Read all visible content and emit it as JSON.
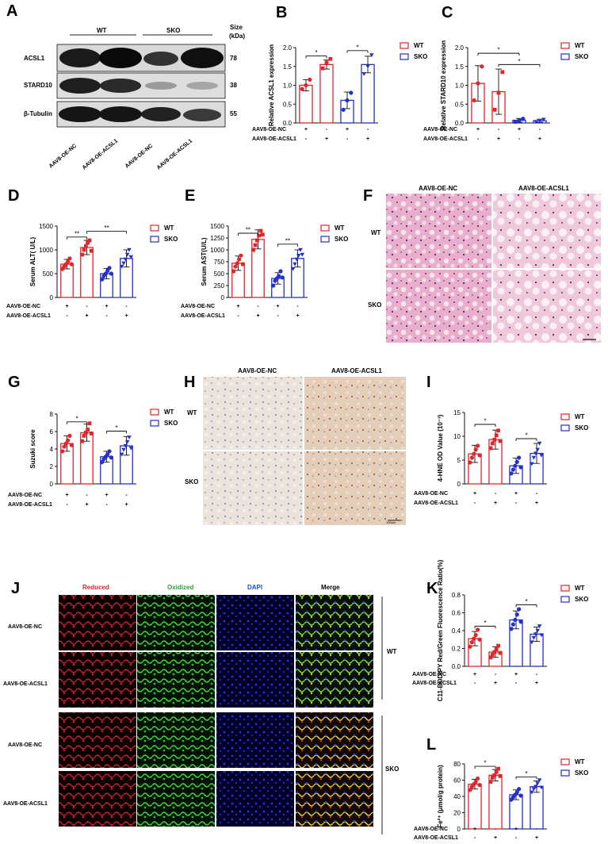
{
  "panel_letters": [
    "A",
    "B",
    "C",
    "D",
    "E",
    "F",
    "G",
    "H",
    "I",
    "J",
    "K",
    "L"
  ],
  "legend": {
    "wt": "WT",
    "sko": "SKO"
  },
  "colors": {
    "wt": "#e0262b",
    "sko": "#2531c8",
    "wt_fill": "#f08c8e",
    "sko_fill": "#8a91e6"
  },
  "plus": "+",
  "minus": "-",
  "sig": {
    "one": "*",
    "two": "**"
  },
  "row_labels": [
    "AAV8-OE-NC",
    "AAV8-OE-ACSL1"
  ],
  "row_signs": [
    [
      "+",
      "-",
      "+",
      "-"
    ],
    [
      "-",
      "+",
      "-",
      "+"
    ]
  ],
  "blot": {
    "wt_label": "WT",
    "sko_label": "SKO",
    "size_label": "Size",
    "kda_label": "(kDa)",
    "rows": [
      {
        "protein": "ACSL1",
        "kda": "78"
      },
      {
        "protein": "STARD10",
        "kda": "38"
      },
      {
        "protein": "β-Tubulin",
        "kda": "55"
      }
    ],
    "lanes": [
      "AAV8-OE-NC",
      "AAV8-OE-ACSL1",
      "AAV8-OE-NC",
      "AAV8-OE-ACSL1"
    ]
  },
  "histo": {
    "col1": "AAV8-OE-NC",
    "col2": "AAV8-OE-ACSL1",
    "row_wt": "WT",
    "row_sko": "SKO",
    "scale_ihc": "100μm"
  },
  "fluor": {
    "headers": [
      "Reduced",
      "Oxidized",
      "DAPI",
      "Merge"
    ],
    "header_colors": [
      "#e0262b",
      "#2ca33a",
      "#1a4fd6",
      "#111111"
    ],
    "rows": [
      "AAV8-OE-NC",
      "AAV8-OE-ACSL1",
      "AAV8-OE-NC",
      "AAV8-OE-ACSL1"
    ],
    "group_wt": "WT",
    "group_sko": "SKO"
  },
  "chart_data": [
    {
      "id": "B",
      "type": "bar",
      "ylabel": "Relative  ACSL1 expression",
      "ylim": [
        0,
        2.0
      ],
      "yticks": [
        "0.0",
        "0.5",
        "1.0",
        "1.5",
        "2.0"
      ],
      "values": [
        1.0,
        1.55,
        0.6,
        1.55
      ],
      "err": [
        0.15,
        0.12,
        0.22,
        0.22
      ],
      "points": [
        [
          0.9,
          1.0,
          1.15
        ],
        [
          1.45,
          1.6,
          1.7
        ],
        [
          0.35,
          0.6,
          0.8
        ],
        [
          1.3,
          1.5,
          1.8
        ]
      ],
      "sig": [
        {
          "from": 0,
          "to": 1,
          "y": 1.78,
          "label": "*"
        },
        {
          "from": 2,
          "to": 3,
          "y": 1.92,
          "label": "*"
        }
      ]
    },
    {
      "id": "C",
      "type": "bar",
      "ylabel": "Relative STARD10 expression",
      "ylim": [
        0,
        2.0
      ],
      "yticks": [
        "0.0",
        "0.5",
        "1.0",
        "1.5",
        "2.0"
      ],
      "values": [
        1.05,
        0.83,
        0.07,
        0.06
      ],
      "err": [
        0.47,
        0.6,
        0.05,
        0.04
      ],
      "points": [
        [
          0.6,
          1.05,
          1.5
        ],
        [
          0.35,
          0.8,
          1.35
        ],
        [
          0.03,
          0.07,
          0.11
        ],
        [
          0.03,
          0.06,
          0.09
        ]
      ],
      "sig": [
        {
          "from": 0,
          "to": 2,
          "y": 1.85,
          "label": "*"
        },
        {
          "from": 1,
          "to": 3,
          "y": 1.55,
          "label": "*"
        }
      ]
    },
    {
      "id": "D",
      "type": "bar",
      "ylabel": "Serum ALT( U/L)",
      "ylim": [
        0,
        1500
      ],
      "yticks": [
        "0",
        "500",
        "1000",
        "1500"
      ],
      "values": [
        700,
        1050,
        500,
        820
      ],
      "err": [
        100,
        150,
        110,
        180
      ],
      "points": [
        [
          600,
          650,
          700,
          750,
          820,
          700
        ],
        [
          900,
          1000,
          1080,
          1150,
          1200,
          980
        ],
        [
          380,
          450,
          500,
          560,
          620,
          500
        ],
        [
          650,
          720,
          800,
          900,
          1000,
          850
        ]
      ],
      "sig": [
        {
          "from": 0,
          "to": 1,
          "y": 1270,
          "label": "**"
        },
        {
          "from": 1,
          "to": 3,
          "y": 1390,
          "label": "**"
        }
      ]
    },
    {
      "id": "E",
      "type": "bar",
      "ylabel": "Serum AST(U/L)",
      "ylim": [
        0,
        1500
      ],
      "yticks": [
        "0",
        "250",
        "500",
        "750",
        "1000",
        "1250",
        "1500"
      ],
      "values": [
        720,
        1220,
        400,
        820
      ],
      "err": [
        150,
        200,
        120,
        180
      ],
      "points": [
        [
          550,
          650,
          720,
          800,
          880,
          700
        ],
        [
          1000,
          1100,
          1200,
          1300,
          1400,
          1320
        ],
        [
          250,
          350,
          400,
          450,
          550,
          420
        ],
        [
          600,
          700,
          800,
          880,
          1000,
          900
        ]
      ],
      "sig": [
        {
          "from": 0,
          "to": 1,
          "y": 1350,
          "label": "**"
        },
        {
          "from": 2,
          "to": 3,
          "y": 1120,
          "label": "**"
        }
      ]
    },
    {
      "id": "G",
      "type": "bar",
      "ylabel": "Suzuki score",
      "ylim": [
        0,
        9
      ],
      "yticks": [
        "0",
        "2",
        "4",
        "6",
        "8"
      ],
      "values": [
        5.2,
        6.6,
        3.5,
        4.9
      ],
      "err": [
        1.0,
        1.1,
        0.7,
        1.2
      ],
      "points": [
        [
          4.2,
          4.8,
          5.2,
          5.6,
          6.2,
          5.0
        ],
        [
          5.5,
          6.2,
          6.6,
          7.0,
          7.8,
          6.5
        ],
        [
          2.8,
          3.2,
          3.5,
          3.8,
          4.2,
          3.4
        ],
        [
          3.8,
          4.4,
          4.9,
          5.4,
          6.0,
          4.6
        ]
      ],
      "sig": [
        {
          "from": 0,
          "to": 1,
          "y": 8.0,
          "label": "*"
        },
        {
          "from": 2,
          "to": 3,
          "y": 6.8,
          "label": "*"
        }
      ]
    },
    {
      "id": "I",
      "type": "bar",
      "ylabel": "4-HNE OD Value (10⁻³)",
      "ylim": [
        0,
        15
      ],
      "yticks": [
        "0",
        "5",
        "10",
        "15"
      ],
      "values": [
        6.3,
        9.3,
        3.8,
        6.4
      ],
      "err": [
        1.8,
        2.0,
        1.6,
        2.1
      ],
      "points": [
        [
          4.5,
          5.5,
          6.3,
          7.2,
          8.0,
          6.0
        ],
        [
          7.5,
          8.5,
          9.3,
          10.2,
          11.2,
          9.0
        ],
        [
          2.2,
          3.0,
          3.8,
          4.6,
          5.5,
          3.5
        ],
        [
          4.2,
          5.5,
          6.4,
          7.2,
          8.5,
          6.0
        ]
      ],
      "sig": [
        {
          "from": 0,
          "to": 1,
          "y": 12.5,
          "label": "*"
        },
        {
          "from": 2,
          "to": 3,
          "y": 9.5,
          "label": "*"
        }
      ]
    },
    {
      "id": "K",
      "type": "bar",
      "ylabel": "C11-BODIPY Red/Green Fluorescence Ratio(%)",
      "ylim": [
        0,
        0.8
      ],
      "yticks": [
        "0.0",
        "0.2",
        "0.4",
        "0.6",
        "0.8"
      ],
      "values": [
        0.31,
        0.16,
        0.52,
        0.36
      ],
      "err": [
        0.08,
        0.06,
        0.1,
        0.08
      ],
      "points": [
        [
          0.22,
          0.27,
          0.31,
          0.35,
          0.41,
          0.3
        ],
        [
          0.1,
          0.13,
          0.16,
          0.19,
          0.23,
          0.15
        ],
        [
          0.42,
          0.47,
          0.52,
          0.58,
          0.64,
          0.5
        ],
        [
          0.27,
          0.32,
          0.36,
          0.4,
          0.45,
          0.35
        ]
      ],
      "sig": [
        {
          "from": 0,
          "to": 1,
          "y": 0.45,
          "label": "*"
        },
        {
          "from": 2,
          "to": 3,
          "y": 0.69,
          "label": "*"
        }
      ]
    },
    {
      "id": "L",
      "type": "bar",
      "ylabel": "Fe²⁺ (μmol/g protein)",
      "ylim": [
        0,
        80
      ],
      "yticks": [
        "0",
        "20",
        "40",
        "60",
        "80"
      ],
      "values": [
        55,
        66,
        42,
        52
      ],
      "err": [
        6,
        7,
        6,
        7
      ],
      "points": [
        [
          48,
          52,
          55,
          58,
          62,
          54
        ],
        [
          58,
          63,
          66,
          70,
          74,
          65
        ],
        [
          36,
          39,
          42,
          45,
          49,
          41
        ],
        [
          45,
          49,
          52,
          56,
          60,
          51
        ]
      ],
      "sig": [
        {
          "from": 0,
          "to": 1,
          "y": 77,
          "label": "*"
        },
        {
          "from": 2,
          "to": 3,
          "y": 64,
          "label": "*"
        }
      ]
    }
  ]
}
